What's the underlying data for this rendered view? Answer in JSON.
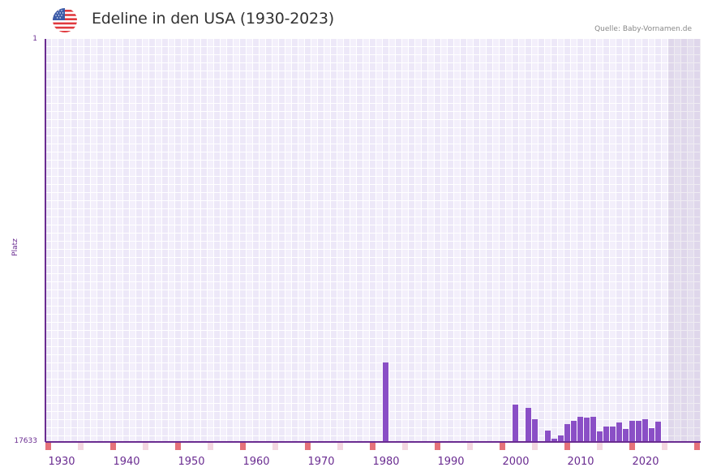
{
  "header": {
    "title": "Edeline in den USA (1930-2023)",
    "source": "Quelle: Baby-Vornamen.de",
    "flag_icon": "us-flag-icon"
  },
  "colors": {
    "bar": "#8a4fc6",
    "axis": "#6a2c91",
    "grid_a": "#ede8f8",
    "grid_b": "#f3effb",
    "marker_decade": "#e5727a",
    "marker_half": "#f4d7e0"
  },
  "chart_data": {
    "type": "bar",
    "title": "Edeline in den USA (1930-2023)",
    "xlabel": "",
    "ylabel": "Platz",
    "y_inverted": true,
    "ylim": [
      1,
      17633
    ],
    "ytick_labels": [
      "1",
      "17633"
    ],
    "xtick_labels": [
      "1930",
      "1940",
      "1950",
      "1960",
      "1970",
      "1980",
      "1990",
      "2000",
      "2010",
      "2020"
    ],
    "x_range": [
      1928,
      2028
    ],
    "grid": true,
    "shaded_future_from": 2024,
    "categories": [
      1980,
      2000,
      2002,
      2003,
      2005,
      2006,
      2007,
      2008,
      2009,
      2010,
      2011,
      2012,
      2013,
      2014,
      2015,
      2016,
      2017,
      2018,
      2019,
      2020,
      2021,
      2022
    ],
    "values": [
      14185,
      16033,
      16175,
      16673,
      17171,
      17526,
      17384,
      16886,
      16744,
      16566,
      16602,
      16566,
      17206,
      16993,
      16993,
      16815,
      17100,
      16744,
      16744,
      16673,
      17064,
      16780
    ]
  },
  "axis": {
    "y_top": "1",
    "y_bottom": "17633",
    "y_title": "Platz",
    "x_labels": [
      {
        "label": "1930",
        "year": 1930
      },
      {
        "label": "1940",
        "year": 1940
      },
      {
        "label": "1950",
        "year": 1950
      },
      {
        "label": "1960",
        "year": 1960
      },
      {
        "label": "1970",
        "year": 1970
      },
      {
        "label": "1980",
        "year": 1980
      },
      {
        "label": "1990",
        "year": 1990
      },
      {
        "label": "2000",
        "year": 2000
      },
      {
        "label": "2010",
        "year": 2010
      },
      {
        "label": "2020",
        "year": 2020
      }
    ]
  }
}
